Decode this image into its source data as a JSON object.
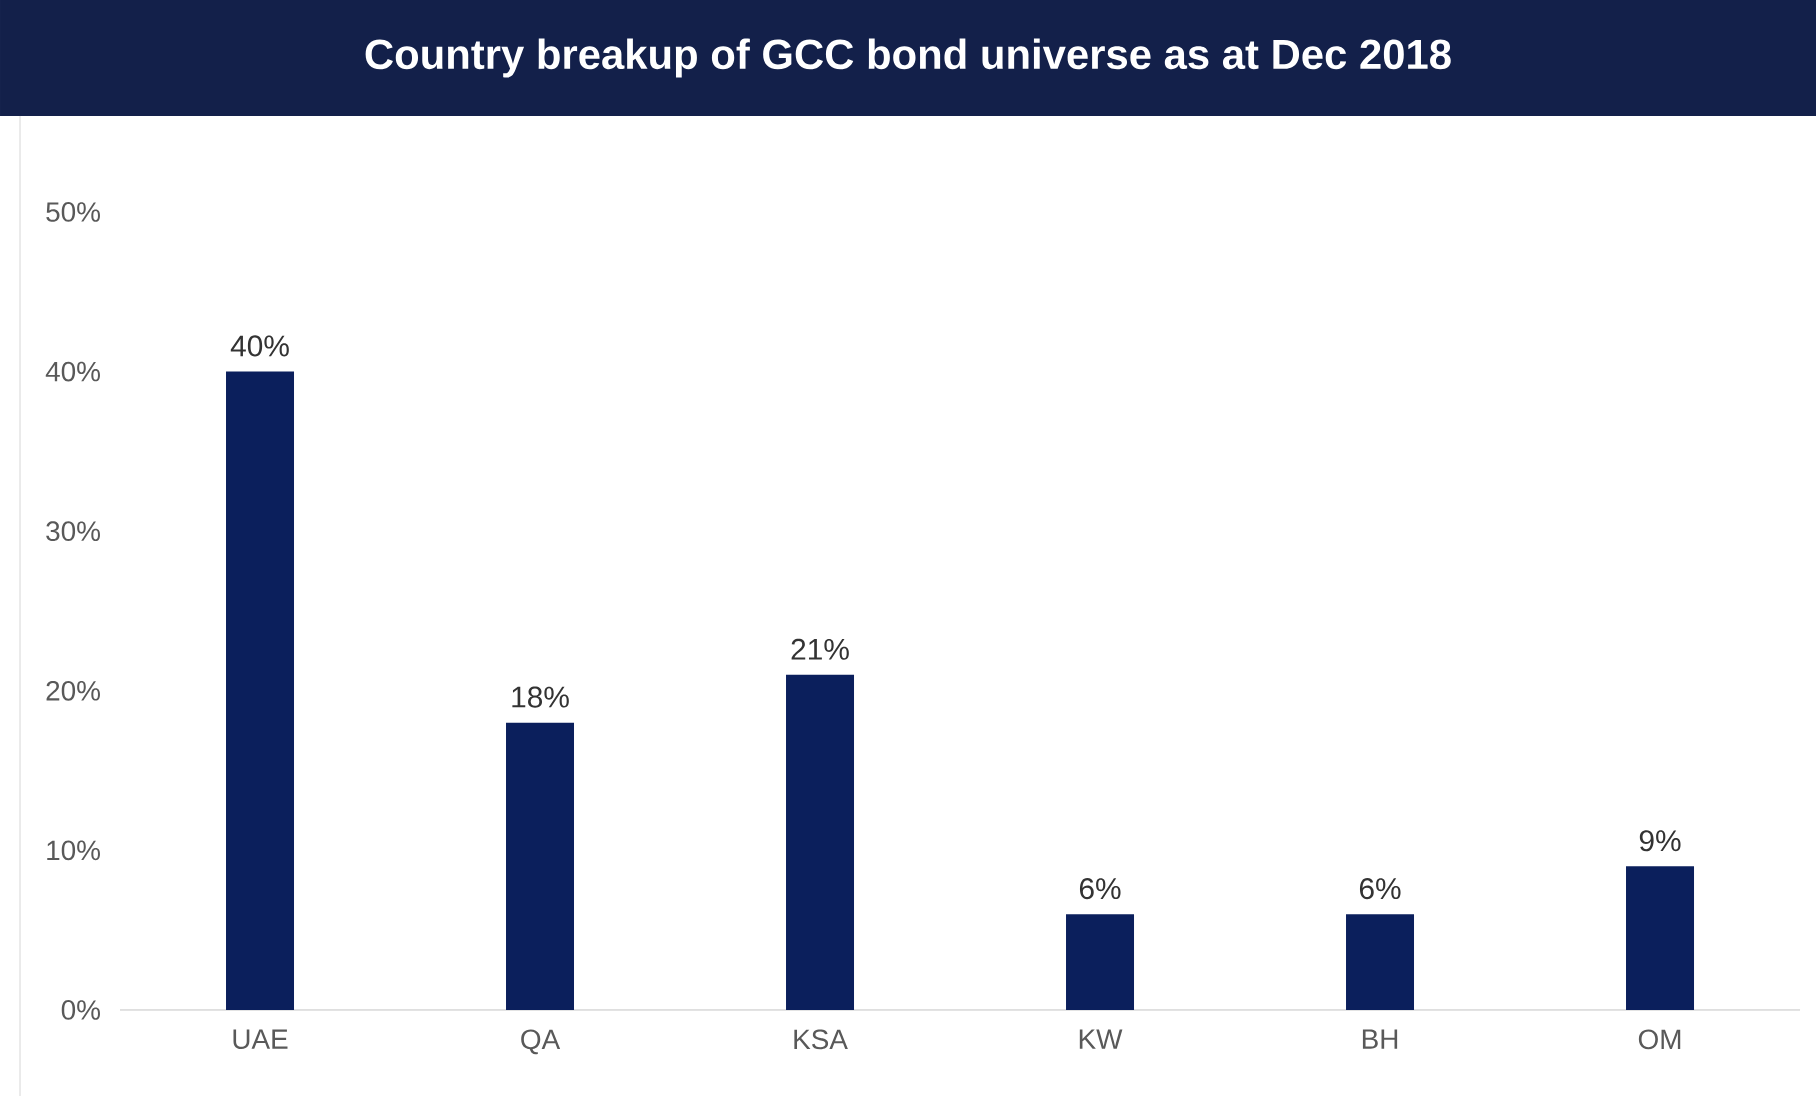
{
  "chart_data": {
    "type": "bar",
    "title": "Country breakup of GCC bond universe as at Dec 2018",
    "categories": [
      "UAE",
      "QA",
      "KSA",
      "KW",
      "BH",
      "OM"
    ],
    "values": [
      40,
      18,
      21,
      6,
      6,
      9
    ],
    "value_labels": [
      "40%",
      "18%",
      "21%",
      "6%",
      "6%",
      "9%"
    ],
    "color": "#0b1f5c",
    "ylim": [
      0,
      50
    ],
    "yticks": [
      {
        "value": 0,
        "label": "0%"
      },
      {
        "value": 10,
        "label": "10%"
      },
      {
        "value": 20,
        "label": "20%"
      },
      {
        "value": 30,
        "label": "30%"
      },
      {
        "value": 40,
        "label": "40%"
      },
      {
        "value": 50,
        "label": "50%"
      }
    ]
  }
}
